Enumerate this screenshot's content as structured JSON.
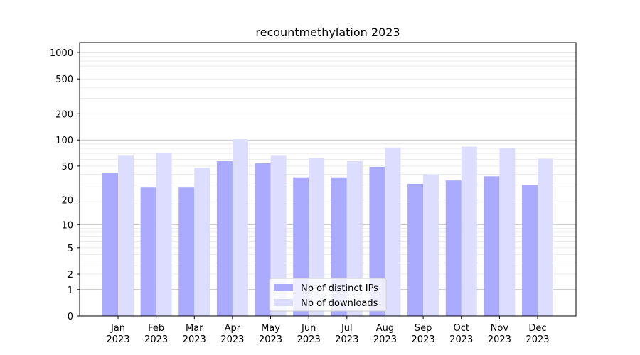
{
  "chart_data": {
    "type": "bar",
    "title": "recountmethylation 2023",
    "xlabel": "",
    "ylabel": "",
    "y_scale": "symlog",
    "ylim": [
      0,
      1300
    ],
    "y_ticks": [
      0,
      1,
      2,
      5,
      10,
      20,
      50,
      100,
      200,
      500,
      1000
    ],
    "y_tick_labels": [
      "0",
      "1",
      "2",
      "5",
      "10",
      "20",
      "50",
      "100",
      "200",
      "500",
      "1000"
    ],
    "grid": true,
    "legend_position": "bottom-center",
    "categories": [
      "Jan\n2023",
      "Feb\n2023",
      "Mar\n2023",
      "Apr\n2023",
      "May\n2023",
      "Jun\n2023",
      "Jul\n2023",
      "Aug\n2023",
      "Sep\n2023",
      "Oct\n2023",
      "Nov\n2023",
      "Dec\n2023"
    ],
    "series": [
      {
        "name": "Nb of distinct IPs",
        "color": "#aaaaff",
        "values": [
          42,
          28,
          28,
          57,
          54,
          37,
          37,
          49,
          31,
          34,
          38,
          30
        ]
      },
      {
        "name": "Nb of downloads",
        "color": "#ddddff",
        "values": [
          66,
          71,
          48,
          102,
          66,
          62,
          57,
          82,
          40,
          84,
          81,
          61
        ]
      }
    ]
  }
}
